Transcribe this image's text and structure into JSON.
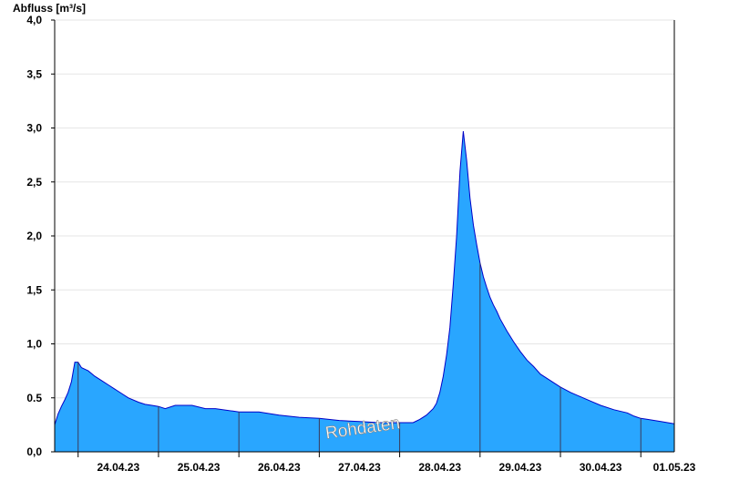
{
  "chart_data": {
    "type": "area",
    "ylabel": "Abfluss [m³/s]",
    "watermark": "Rohdaten",
    "x_range": [
      "23.04.23 17:00",
      "01.05.23 10:00"
    ],
    "ylim": [
      0,
      4.0
    ],
    "y_ticks": [
      "0,0",
      "0.5",
      "1,0",
      "1,5",
      "2,0",
      "2,5",
      "3,0",
      "3,5",
      "4,0"
    ],
    "x_ticks": [
      "24.04.23",
      "25.04.23",
      "26.04.23",
      "27.04.23",
      "28.04.23",
      "29.04.23",
      "30.04.23",
      "01.05.23"
    ],
    "grid": "horizontal",
    "colors": {
      "fill": "#29a6ff",
      "line": "#0000c8",
      "grid": "#e6e6e6",
      "day_divider": "#3a3a5a"
    },
    "series": [
      {
        "x": [
          "23.04.23 17:00",
          "23.04.23 18:00",
          "23.04.23 19:00",
          "23.04.23 20:00",
          "23.04.23 21:00",
          "23.04.23 22:00",
          "23.04.23 23:00",
          "24.04.23 00:00",
          "24.04.23 01:00",
          "24.04.23 03:00",
          "24.04.23 05:00",
          "24.04.23 07:00",
          "24.04.23 09:00",
          "24.04.23 11:00",
          "24.04.23 13:00",
          "24.04.23 15:00",
          "24.04.23 18:00",
          "24.04.23 20:00",
          "24.04.23 22:00",
          "25.04.23 00:00",
          "25.04.23 02:00",
          "25.04.23 05:00",
          "25.04.23 10:00",
          "25.04.23 14:00",
          "25.04.23 17:00",
          "26.04.23 00:00",
          "26.04.23 06:00",
          "26.04.23 12:00",
          "26.04.23 18:00",
          "27.04.23 00:00",
          "27.04.23 06:00",
          "27.04.23 12:00",
          "27.04.23 18:00",
          "28.04.23 00:00",
          "28.04.23 04:00",
          "28.04.23 06:00",
          "28.04.23 08:00",
          "28.04.23 10:00",
          "28.04.23 11:00",
          "28.04.23 12:00",
          "28.04.23 13:00",
          "28.04.23 14:00",
          "28.04.23 15:00",
          "28.04.23 16:00",
          "28.04.23 17:00",
          "28.04.23 18:00",
          "28.04.23 19:00",
          "28.04.23 20:00",
          "28.04.23 21:00",
          "28.04.23 22:00",
          "28.04.23 23:00",
          "29.04.23 00:00",
          "29.04.23 01:00",
          "29.04.23 02:00",
          "29.04.23 03:00",
          "29.04.23 04:00",
          "29.04.23 05:00",
          "29.04.23 06:00",
          "29.04.23 08:00",
          "29.04.23 10:00",
          "29.04.23 12:00",
          "29.04.23 14:00",
          "29.04.23 16:00",
          "29.04.23 18:00",
          "29.04.23 21:00",
          "30.04.23 00:00",
          "30.04.23 03:00",
          "30.04.23 06:00",
          "30.04.23 09:00",
          "30.04.23 12:00",
          "30.04.23 16:00",
          "30.04.23 20:00",
          "30.04.23 22:00",
          "01.05.23 00:00",
          "01.05.23 02:00",
          "01.05.23 06:00",
          "01.05.23 10:00"
        ],
        "values": [
          0.25,
          0.35,
          0.42,
          0.48,
          0.55,
          0.65,
          0.83,
          0.83,
          0.78,
          0.75,
          0.7,
          0.66,
          0.62,
          0.58,
          0.54,
          0.5,
          0.46,
          0.44,
          0.43,
          0.42,
          0.4,
          0.43,
          0.43,
          0.4,
          0.4,
          0.37,
          0.37,
          0.34,
          0.32,
          0.31,
          0.29,
          0.28,
          0.27,
          0.27,
          0.27,
          0.3,
          0.34,
          0.4,
          0.45,
          0.55,
          0.7,
          0.9,
          1.15,
          1.55,
          2.0,
          2.6,
          2.97,
          2.7,
          2.35,
          2.1,
          1.92,
          1.75,
          1.62,
          1.52,
          1.43,
          1.36,
          1.3,
          1.23,
          1.12,
          1.02,
          0.93,
          0.85,
          0.79,
          0.72,
          0.66,
          0.6,
          0.55,
          0.51,
          0.47,
          0.43,
          0.39,
          0.36,
          0.33,
          0.31,
          0.3,
          0.28,
          0.26
        ]
      }
    ]
  }
}
